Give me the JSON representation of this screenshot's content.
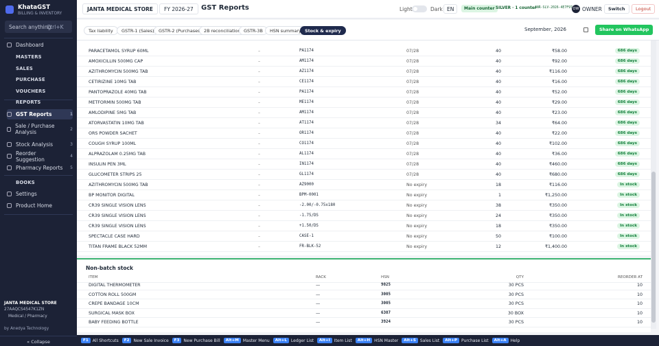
{
  "sidebar": {
    "brand": "KhataGST",
    "tagline": "BILLING & INVENTORY",
    "search": "Search anything",
    "search_key": "Ctrl+K",
    "menu": [
      {
        "label": "Dashboard"
      },
      {
        "label": "MASTERS"
      },
      {
        "label": "SALES"
      },
      {
        "label": "PURCHASE"
      },
      {
        "label": "VOUCHERS"
      },
      {
        "label": "REPORTS"
      },
      {
        "label": "GST Reports",
        "badge": "1"
      },
      {
        "label": "Sale / Purchase Analysis",
        "badge": "2"
      },
      {
        "label": "Stock Analysis",
        "badge": "3"
      },
      {
        "label": "Reorder Suggestion",
        "badge": "4"
      },
      {
        "label": "Pharmacy Reports",
        "badge": "5"
      },
      {
        "label": "BOOKS"
      },
      {
        "label": "Settings"
      },
      {
        "label": "Product Home"
      }
    ],
    "company": "JANTA MEDICAL STORE",
    "gstin": "27AAQCS4547K1ZN",
    "business": "Medical / Pharmacy",
    "vendor": "by Anedya Technology",
    "collapse": "« Collapse"
  },
  "topbar": {
    "store": "JANTA MEDICAL STORE",
    "fy": "FY 2026-27",
    "title": "GST Reports",
    "light": "Light",
    "dark": "Dark",
    "lang": "EN",
    "counter": "Main counter",
    "plan": "SILVER · 1 counter",
    "license": "ANR-SLV-2026-4E7F97",
    "avatar": "OW",
    "role": "OWNER",
    "switch": "Switch",
    "logout": "Logout"
  },
  "tabs": [
    "Tax liability",
    "GSTR-1 (Sales)",
    "GSTR-2 (Purchases)",
    "2B reconciliation",
    "GSTR-3B",
    "HSN summary",
    "Stock & expiry"
  ],
  "month": "September, 2026",
  "share": "Share on WhatsApp",
  "batch_rows": [
    [
      "PARACETAMOL SYRUP 60ML",
      "–",
      "PA1174",
      "07/28",
      "40",
      "₹58.00",
      "686 days"
    ],
    [
      "AMOXICILLIN 500MG CAP",
      "–",
      "AM1174",
      "07/28",
      "40",
      "₹92.00",
      "686 days"
    ],
    [
      "AZITHROMYCIN 500MG TAB",
      "–",
      "AZ1174",
      "07/28",
      "40",
      "₹116.00",
      "686 days"
    ],
    [
      "CETIRIZINE 10MG TAB",
      "–",
      "CE1174",
      "07/28",
      "40",
      "₹16.00",
      "686 days"
    ],
    [
      "PANTOPRAZOLE 40MG TAB",
      "–",
      "PA1174",
      "07/28",
      "40",
      "₹52.00",
      "686 days"
    ],
    [
      "METFORMIN 500MG TAB",
      "–",
      "ME1174",
      "07/28",
      "40",
      "₹29.00",
      "686 days"
    ],
    [
      "AMLODIPINE 5MG TAB",
      "–",
      "AM1174",
      "07/28",
      "40",
      "₹23.00",
      "686 days"
    ],
    [
      "ATORVASTATIN 10MG TAB",
      "–",
      "AT1174",
      "07/28",
      "34",
      "₹64.00",
      "686 days"
    ],
    [
      "ORS POWDER SACHET",
      "–",
      "OR1174",
      "07/28",
      "40",
      "₹22.00",
      "686 days"
    ],
    [
      "COUGH SYRUP 100ML",
      "–",
      "CO1174",
      "07/28",
      "40",
      "₹102.00",
      "686 days"
    ],
    [
      "ALPRAZOLAM 0.25MG TAB",
      "–",
      "AL1174",
      "07/28",
      "40",
      "₹36.00",
      "686 days"
    ],
    [
      "INSULIN PEN 3ML",
      "–",
      "IN1174",
      "07/28",
      "40",
      "₹460.00",
      "686 days"
    ],
    [
      "GLUCOMETER STRIPS 25",
      "–",
      "GL1174",
      "07/28",
      "40",
      "₹680.00",
      "686 days"
    ],
    [
      "AZITHROMYCIN 500MG TAB",
      "–",
      "AZ9000",
      "No expiry",
      "18",
      "₹116.00",
      "In stock"
    ],
    [
      "BP MONITOR DIGITAL",
      "–",
      "BPM-0001",
      "No expiry",
      "1",
      "₹1,250.00",
      "In stock"
    ],
    [
      "CR39 SINGLE VISION LENS",
      "–",
      "-2.00/-0.75x180",
      "No expiry",
      "38",
      "₹350.00",
      "In stock"
    ],
    [
      "CR39 SINGLE VISION LENS",
      "–",
      "-1.75/DS",
      "No expiry",
      "24",
      "₹350.00",
      "In stock"
    ],
    [
      "CR39 SINGLE VISION LENS",
      "–",
      "+1.50/DS",
      "No expiry",
      "18",
      "₹350.00",
      "In stock"
    ],
    [
      "SPECTACLE CASE HARD",
      "–",
      "CASE-1",
      "No expiry",
      "50",
      "₹100.00",
      "In stock"
    ],
    [
      "TITAN FRAME BLACK 52MM",
      "–",
      "FR-BLK-52",
      "No expiry",
      "12",
      "₹1,400.00",
      "In stock"
    ]
  ],
  "non_batch": {
    "title": "Non-batch stock",
    "headers": [
      "ITEM",
      "RACK",
      "HSN",
      "QTY",
      "REORDER AT"
    ],
    "rows": [
      [
        "DIGITAL THERMOMETER",
        "—",
        "9025",
        "30 PCS",
        "10"
      ],
      [
        "COTTON ROLL 500GM",
        "—",
        "3005",
        "30 PCS",
        "10"
      ],
      [
        "CREPE BANDAGE 10CM",
        "—",
        "3005",
        "30 PCS",
        "10"
      ],
      [
        "SURGICAL MASK BOX",
        "—",
        "6307",
        "30 BOX",
        "10"
      ],
      [
        "BABY FEEDING BOTTLE",
        "—",
        "3924",
        "30 PCS",
        "10"
      ]
    ]
  },
  "shortcuts": [
    [
      "F1",
      "All Shortcuts"
    ],
    [
      "F2",
      "New Sale Invoice"
    ],
    [
      "F3",
      "New Purchase Bill"
    ],
    [
      "Alt+M",
      "Master Menu"
    ],
    [
      "Alt+L",
      "Ledger List"
    ],
    [
      "Alt+I",
      "Item List"
    ],
    [
      "Alt+H",
      "HSN Master"
    ],
    [
      "Alt+S",
      "Sales List"
    ],
    [
      "Alt+P",
      "Purchase List"
    ],
    [
      "Alt+A",
      "Help"
    ]
  ]
}
